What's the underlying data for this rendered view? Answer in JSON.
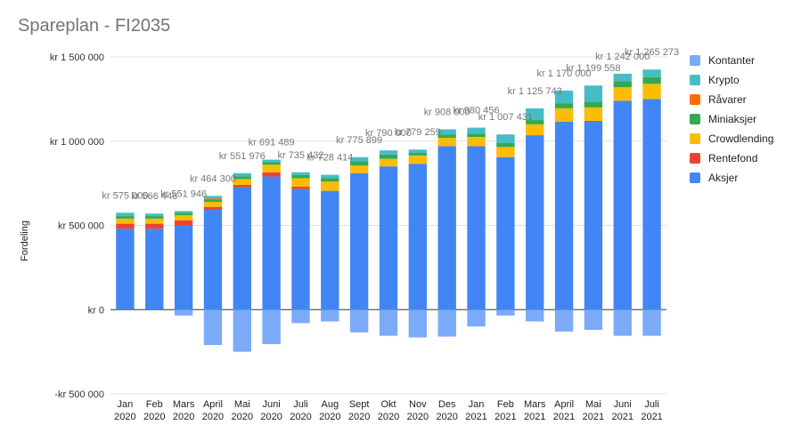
{
  "chart_data": {
    "type": "bar",
    "stacked": true,
    "title": "Spareplan - FI2035",
    "xlabel": "",
    "ylabel": "Fordeling",
    "ylim": [
      -500000,
      1500000
    ],
    "yticks": [
      {
        "value": -500000,
        "label": "-kr 500 000"
      },
      {
        "value": 0,
        "label": "kr   0"
      },
      {
        "value": 500000,
        "label": "kr 500 000"
      },
      {
        "value": 1000000,
        "label": "kr 1 000 000"
      },
      {
        "value": 1500000,
        "label": "kr 1 500 000"
      }
    ],
    "categories": [
      [
        "Jan",
        "2020"
      ],
      [
        "Feb",
        "2020"
      ],
      [
        "Mars",
        "2020"
      ],
      [
        "April",
        "2020"
      ],
      [
        "Mai",
        "2020"
      ],
      [
        "Juni",
        "2020"
      ],
      [
        "Juli",
        "2020"
      ],
      [
        "Aug",
        "2020"
      ],
      [
        "Sept",
        "2020"
      ],
      [
        "Okt",
        "2020"
      ],
      [
        "Nov",
        "2020"
      ],
      [
        "Des",
        "2020"
      ],
      [
        "Jan",
        "2021"
      ],
      [
        "Feb",
        "2021"
      ],
      [
        "Mars",
        "2021"
      ],
      [
        "April",
        "2021"
      ],
      [
        "Mai",
        "2021"
      ],
      [
        "Juni",
        "2021"
      ],
      [
        "Juli",
        "2021"
      ]
    ],
    "series": [
      {
        "name": "Aksjer",
        "color": "#4285f4",
        "values": [
          480000,
          480000,
          500000,
          595000,
          725000,
          790000,
          715000,
          705000,
          810000,
          850000,
          865000,
          970000,
          970000,
          905000,
          1035000,
          1115000,
          1120000,
          1240000,
          1250000
        ]
      },
      {
        "name": "Rentefond",
        "color": "#ea4335",
        "values": [
          30000,
          30000,
          30000,
          15000,
          15000,
          25000,
          15000,
          0,
          0,
          0,
          0,
          0,
          0,
          0,
          0,
          0,
          0,
          0,
          0
        ]
      },
      {
        "name": "Crowdlending",
        "color": "#fbbc04",
        "values": [
          30000,
          30000,
          30000,
          30000,
          35000,
          45000,
          50000,
          55000,
          45000,
          45000,
          50000,
          50000,
          55000,
          60000,
          65000,
          80000,
          80000,
          80000,
          90000
        ]
      },
      {
        "name": "Miniaksjer",
        "color": "#34a853",
        "values": [
          15000,
          15000,
          15000,
          15000,
          15000,
          15000,
          20000,
          20000,
          25000,
          25000,
          15000,
          20000,
          20000,
          25000,
          25000,
          30000,
          35000,
          35000,
          40000
        ]
      },
      {
        "name": "Råvarer",
        "color": "#ff6d01",
        "values": [
          0,
          0,
          0,
          5000,
          0,
          0,
          0,
          0,
          0,
          0,
          0,
          0,
          0,
          0,
          0,
          0,
          0,
          0,
          0
        ]
      },
      {
        "name": "Krypto",
        "color": "#46bdc6",
        "values": [
          20000,
          15000,
          10000,
          15000,
          20000,
          15000,
          15000,
          20000,
          25000,
          25000,
          20000,
          30000,
          35000,
          50000,
          70000,
          75000,
          95000,
          45000,
          45000
        ]
      },
      {
        "name": "Kontanter",
        "color": "#7baaf7",
        "values": [
          0,
          0,
          -35000,
          -210000,
          -250000,
          -205000,
          -80000,
          -70000,
          -135000,
          -155000,
          -165000,
          -160000,
          -100000,
          -35000,
          -70000,
          -130000,
          -120000,
          -155000,
          -155000
        ]
      }
    ],
    "data_labels": [
      "kr 575 000",
      "kr 566 448",
      "kr 551 946",
      "kr 464 300",
      "kr 551 976",
      "kr 691 489",
      "kr 735 432",
      "kr 728 414",
      "kr 775 899",
      "kr 790 000",
      "kr 779 259",
      "kr 908 000",
      "kr 980 456",
      "kr 1 007 431",
      "kr 1 125 743",
      "kr 1 170 000",
      "kr 1 199 558",
      "kr 1 242 000",
      "kr 1 265 273"
    ],
    "legend_order": [
      "Kontanter",
      "Krypto",
      "Råvarer",
      "Miniaksjer",
      "Crowdlending",
      "Rentefond",
      "Aksjer"
    ],
    "legend_position": "right",
    "grid": true
  }
}
